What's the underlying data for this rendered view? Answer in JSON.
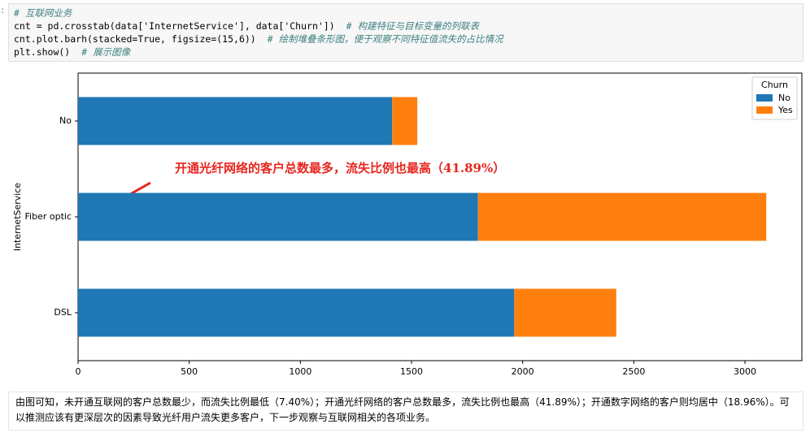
{
  "cell": {
    "prompt": ":",
    "lines": [
      {
        "comment": "# 互联网业务"
      },
      {
        "code": "cnt = pd.crosstab(data['InternetService'], data['Churn'])",
        "comment": "# 构建特征与目标变量的列联表"
      },
      {
        "code": "cnt.plot.barh(stacked=True, figsize=(15,6))",
        "comment": "# 绘制堆叠条形图，便于观察不同特征值流失的占比情况"
      },
      {
        "code": "plt.show()",
        "comment": "# 展示图像"
      }
    ]
  },
  "chart_data": {
    "type": "barh_stacked",
    "ylabel": "InternetService",
    "categories": [
      "DSL",
      "Fiber optic",
      "No"
    ],
    "series": [
      {
        "name": "No",
        "color": "#1f77b4",
        "values": [
          1962,
          1799,
          1413
        ]
      },
      {
        "name": "Yes",
        "color": "#ff7f0e",
        "values": [
          459,
          1297,
          113
        ]
      }
    ],
    "legend_title": "Churn",
    "legend": "upper right",
    "xlim": [
      0,
      3256
    ],
    "xticks": [
      0,
      500,
      1000,
      1500,
      2000,
      2500,
      3000
    ],
    "annotation": "开通光纤网络的客户总数最多，流失比例也最高（41.89%）"
  },
  "markdown": "由图可知，未开通互联网的客户总数最少，而流失比例最低（7.40%）；开通光纤网络的客户总数最多，流失比例也最高（41.89%）；开通数字网络的客户则均居中（18.96%）。可以推测应该有更深层次的因素导致光纤用户流失更多客户，下一步观察与互联网相关的各项业务。"
}
